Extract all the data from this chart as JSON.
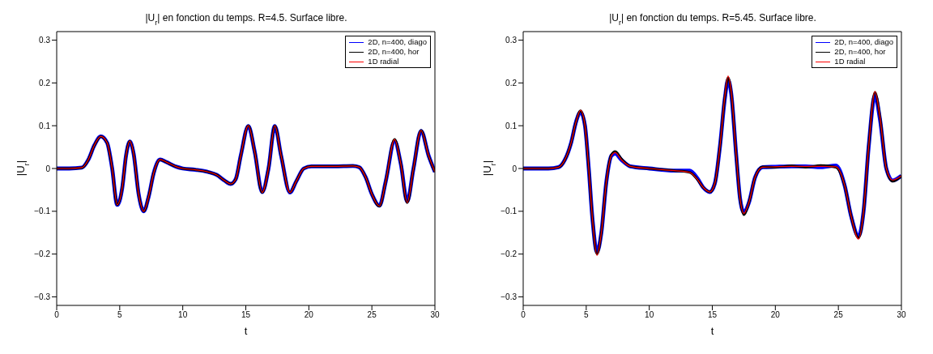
{
  "chart_data": [
    {
      "type": "line",
      "title": "|U$_{r}$| en fonction du temps. R=4.5. Surface libre.",
      "xlabel": "t",
      "ylabel": "|U$_{r}$|",
      "legend": "top right",
      "x": [
        0,
        1,
        2,
        2.5,
        3,
        3.5,
        4,
        4.4,
        4.8,
        5.2,
        5.5,
        5.8,
        6.1,
        6.5,
        6.9,
        7.3,
        7.7,
        8.2,
        8.7,
        9.5,
        10,
        11,
        12,
        12.7,
        13.3,
        13.8,
        14.2,
        14.6,
        15.2,
        15.7,
        16.3,
        16.8,
        17.3,
        17.8,
        18.5,
        19,
        19.6,
        20.2,
        22,
        23.5,
        24,
        24.5,
        25,
        25.6,
        26.1,
        26.8,
        27.3,
        27.8,
        28.3,
        28.9,
        29.5,
        30
      ],
      "series": [
        {
          "name": "2D, n=400, diago",
          "color": "#0000ff",
          "values": [
            0,
            0,
            0.002,
            0.02,
            0.055,
            0.075,
            0.06,
            0,
            -0.085,
            -0.045,
            0.03,
            0.063,
            0.035,
            -0.06,
            -0.1,
            -0.065,
            -0.01,
            0.021,
            0.015,
            0.004,
            0,
            -0.003,
            -0.008,
            -0.015,
            -0.028,
            -0.036,
            -0.025,
            0.03,
            0.099,
            0.04,
            -0.055,
            0,
            0.099,
            0.03,
            -0.056,
            -0.03,
            0,
            0.005,
            0.005,
            0.006,
            0.003,
            -0.02,
            -0.06,
            -0.087,
            -0.03,
            0.064,
            0.01,
            -0.077,
            0,
            0.088,
            0.03,
            -0.008
          ]
        },
        {
          "name": "2D, n=400, hor",
          "color": "#000000",
          "values": [
            0,
            0,
            0.002,
            0.02,
            0.055,
            0.075,
            0.06,
            0,
            -0.085,
            -0.045,
            0.03,
            0.064,
            0.035,
            -0.06,
            -0.1,
            -0.065,
            -0.01,
            0.021,
            0.015,
            0.004,
            0,
            -0.003,
            -0.008,
            -0.015,
            -0.028,
            -0.036,
            -0.025,
            0.03,
            0.1,
            0.04,
            -0.056,
            0,
            0.1,
            0.03,
            -0.056,
            -0.03,
            0,
            0.005,
            0.005,
            0.006,
            0.003,
            -0.02,
            -0.06,
            -0.088,
            -0.03,
            0.068,
            0.01,
            -0.08,
            0,
            0.089,
            0.03,
            -0.008
          ]
        },
        {
          "name": "1D radial",
          "color": "#ff0000",
          "values": [
            0,
            0,
            0.002,
            0.02,
            0.055,
            0.075,
            0.06,
            0,
            -0.085,
            -0.045,
            0.03,
            0.064,
            0.035,
            -0.06,
            -0.1,
            -0.065,
            -0.01,
            0.021,
            0.015,
            0.004,
            0,
            -0.003,
            -0.008,
            -0.015,
            -0.028,
            -0.036,
            -0.025,
            0.03,
            0.1,
            0.04,
            -0.056,
            0,
            0.1,
            0.03,
            -0.056,
            -0.03,
            0,
            0.005,
            0.005,
            0.006,
            0.003,
            -0.02,
            -0.06,
            -0.088,
            -0.03,
            0.068,
            0.01,
            -0.08,
            0,
            0.089,
            0.03,
            -0.008
          ]
        }
      ],
      "xlim": [
        0,
        30
      ],
      "xticks": [
        0,
        5,
        10,
        15,
        20,
        25,
        30
      ],
      "ylim": [
        -0.32,
        0.32
      ],
      "yticks": [
        {
          "value": -0.3,
          "label": "−0.3"
        },
        {
          "value": -0.2,
          "label": "−0.2"
        },
        {
          "value": -0.1,
          "label": "−0.1"
        },
        0,
        0.1,
        0.2,
        0.3
      ]
    },
    {
      "type": "line",
      "title": "|U$_{r}$| en fonction du temps. R=5.45. Surface libre.",
      "xlabel": "t",
      "ylabel": "|U$_{r}$|",
      "legend": "top right",
      "x": [
        0,
        2,
        2.8,
        3.3,
        3.8,
        4.2,
        4.55,
        4.9,
        5.2,
        5.5,
        5.85,
        6.2,
        6.6,
        7,
        7.3,
        7.8,
        8.5,
        10,
        12,
        13.2,
        13.8,
        14.3,
        14.8,
        15.2,
        15.6,
        16,
        16.25,
        16.5,
        16.9,
        17.2,
        17.5,
        17.9,
        18.4,
        19,
        20,
        21.3,
        22.4,
        23.6,
        24.8,
        25.5,
        26,
        26.6,
        27,
        27.4,
        27.9,
        28.3,
        28.8,
        29.3,
        30
      ],
      "series": [
        {
          "name": "2D, n=400, diago",
          "color": "#0000ff",
          "values": [
            0,
            0,
            0.003,
            0.02,
            0.06,
            0.11,
            0.132,
            0.1,
            0,
            -0.12,
            -0.195,
            -0.15,
            -0.03,
            0.03,
            0.035,
            0.02,
            0.005,
            0,
            -0.005,
            -0.005,
            -0.022,
            -0.045,
            -0.055,
            -0.035,
            0.05,
            0.165,
            0.207,
            0.175,
            0.03,
            -0.07,
            -0.102,
            -0.08,
            -0.02,
            0.003,
            0.004,
            0.005,
            0.005,
            0.003,
            0.007,
            -0.04,
            -0.11,
            -0.158,
            -0.1,
            0.05,
            0.17,
            0.115,
            0,
            -0.028,
            -0.017
          ]
        },
        {
          "name": "2D, n=400, hor",
          "color": "#000000",
          "values": [
            0,
            0,
            0.003,
            0.02,
            0.06,
            0.11,
            0.135,
            0.1,
            0,
            -0.12,
            -0.2,
            -0.15,
            -0.03,
            0.032,
            0.04,
            0.022,
            0.005,
            0,
            -0.005,
            -0.009,
            -0.025,
            -0.045,
            -0.055,
            -0.035,
            0.05,
            0.168,
            0.212,
            0.178,
            0.03,
            -0.07,
            -0.108,
            -0.08,
            -0.02,
            0.004,
            0.003,
            0.006,
            0.003,
            0.007,
            0.003,
            -0.04,
            -0.11,
            -0.162,
            -0.1,
            0.05,
            0.178,
            0.12,
            0,
            -0.03,
            -0.017
          ]
        },
        {
          "name": "1D radial",
          "color": "#ff0000",
          "values": [
            0,
            0,
            0.003,
            0.02,
            0.06,
            0.11,
            0.136,
            0.1,
            0,
            -0.12,
            -0.203,
            -0.15,
            -0.03,
            0.03,
            0.037,
            0.02,
            0.005,
            0,
            -0.005,
            -0.009,
            -0.025,
            -0.045,
            -0.055,
            -0.035,
            0.05,
            0.17,
            0.216,
            0.18,
            0.03,
            -0.07,
            -0.105,
            -0.08,
            -0.02,
            0.003,
            0.004,
            0.005,
            0.005,
            0.005,
            0.004,
            -0.04,
            -0.11,
            -0.165,
            -0.1,
            0.05,
            0.18,
            0.12,
            0,
            -0.027,
            -0.017
          ]
        }
      ],
      "xlim": [
        0,
        30
      ],
      "xticks": [
        0,
        5,
        10,
        15,
        20,
        25,
        30
      ],
      "ylim": [
        -0.32,
        0.32
      ],
      "yticks": [
        {
          "value": -0.3,
          "label": "−0.3"
        },
        {
          "value": -0.2,
          "label": "−0.2"
        },
        {
          "value": -0.1,
          "label": "−0.1"
        },
        0,
        0.1,
        0.2,
        0.3
      ]
    }
  ]
}
